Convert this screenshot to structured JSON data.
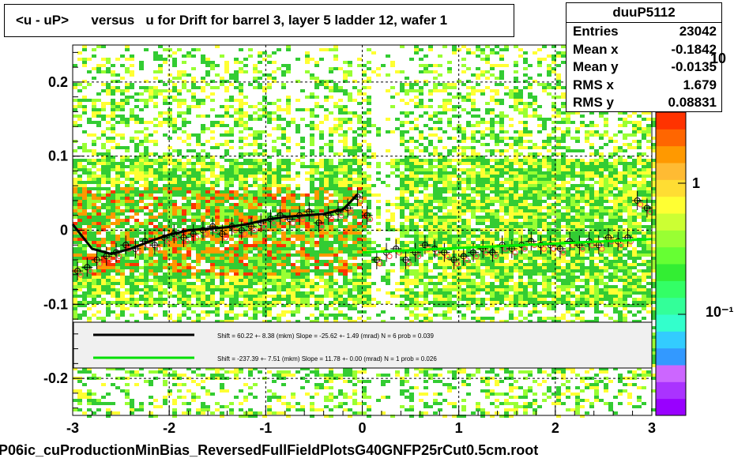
{
  "title": {
    "left": "<u - uP>",
    "versus": "versus",
    "rest": "u for Drift for barrel 3, layer 5 ladder 12, wafer 1"
  },
  "stats": {
    "name": "duuP5112",
    "rows": [
      {
        "label": "Entries",
        "value": "23042"
      },
      {
        "label": "Mean x",
        "value": "-0.1842"
      },
      {
        "label": "Mean y",
        "value": "-0.0135"
      },
      {
        "label": "RMS x",
        "value": "1.679"
      },
      {
        "label": "RMS y",
        "value": "0.08831"
      }
    ]
  },
  "palette_labels": {
    "top": "10",
    "mid": "1",
    "low": "10⁻¹"
  },
  "footer": "P06ic_cuProductionMinBias_ReversedFullFieldPlotsG40GNFP25rCut0.5cm.root",
  "legend": {
    "line1": "Shift =    60.22 +- 8.38 (mkm) Slope =   -25.62 +- 1.49 (mrad)  N = 6 prob = 0.039",
    "line2": "Shift =  -237.39 +- 7.51 (mkm) Slope =    11.78 +- 0.00 (mrad)  N = 1 prob = 0.026",
    "color1": "#000000",
    "color2": "#00e000"
  },
  "chart_data": {
    "type": "heatmap",
    "xlim": [
      -3,
      3
    ],
    "ylim": [
      -0.25,
      0.25
    ],
    "x_ticks": [
      -3,
      -2,
      -1,
      0,
      1,
      2,
      3
    ],
    "x_tick_labels": [
      "-3",
      "-2",
      "-1",
      "0",
      "1",
      "2",
      "3"
    ],
    "y_ticks": [
      -0.2,
      -0.1,
      0,
      0.1,
      0.2
    ],
    "y_tick_labels": [
      "-0.2",
      "-0.1",
      "0",
      "0.1",
      "0.2"
    ],
    "grid": true,
    "colors": {
      "green": "#33cc33",
      "yellow": "#ffff33",
      "orange": "#ff9900",
      "red": "#ff3300",
      "lightgreen": "#99ff33",
      "fit_black": "#000000",
      "fit_green": "#00ee00"
    },
    "profile_left": {
      "x": [
        -2.95,
        -2.85,
        -2.75,
        -2.65,
        -2.55,
        -2.45,
        -2.35,
        -2.25,
        -2.15,
        -2.05,
        -1.95,
        -1.85,
        -1.75,
        -1.65,
        -1.55,
        -1.45,
        -1.35,
        -1.25,
        -1.15,
        -1.05,
        -0.95,
        -0.85,
        -0.75,
        -0.65,
        -0.55,
        -0.45,
        -0.35,
        -0.25,
        -0.15,
        -0.05
      ],
      "y": [
        -0.055,
        -0.05,
        -0.04,
        -0.035,
        -0.03,
        -0.02,
        -0.025,
        -0.015,
        -0.02,
        -0.01,
        -0.005,
        -0.01,
        -0.005,
        0.0,
        0.005,
        -0.005,
        0.005,
        0.0,
        0.005,
        0.01,
        0.015,
        0.02,
        0.015,
        0.02,
        0.025,
        0.01,
        0.02,
        0.025,
        0.03,
        0.045
      ]
    },
    "profile_right": {
      "x": [
        0.05,
        0.15,
        0.25,
        0.35,
        0.45,
        0.55,
        0.65,
        0.75,
        0.85,
        0.95,
        1.05,
        1.15,
        1.25,
        1.35,
        1.45,
        1.55,
        1.65,
        1.75,
        1.85,
        1.95,
        2.05,
        2.15,
        2.25,
        2.35,
        2.45,
        2.55,
        2.65,
        2.75,
        2.85,
        2.95
      ],
      "y": [
        0.02,
        -0.04,
        -0.03,
        -0.025,
        -0.04,
        -0.03,
        -0.02,
        -0.025,
        -0.03,
        -0.04,
        -0.035,
        -0.03,
        -0.025,
        -0.03,
        -0.02,
        -0.025,
        -0.02,
        -0.015,
        -0.02,
        -0.02,
        -0.025,
        -0.015,
        -0.02,
        -0.015,
        -0.02,
        -0.01,
        -0.015,
        -0.01,
        0.04,
        0.03
      ]
    },
    "fit_left": {
      "x": [
        -3.0,
        -2.8,
        -2.6,
        -2.4,
        -2.2,
        -2.0,
        -1.8,
        -1.6,
        -1.4,
        -1.2,
        -1.0,
        -0.8,
        -0.6,
        -0.4,
        -0.2,
        -0.05
      ],
      "y": [
        0.008,
        -0.025,
        -0.032,
        -0.025,
        -0.015,
        -0.006,
        0.0,
        0.002,
        0.004,
        0.008,
        0.014,
        0.018,
        0.02,
        0.022,
        0.028,
        0.048
      ]
    },
    "fit_right": {
      "x": [
        0.0,
        3.0
      ],
      "y": [
        -0.03,
        -0.012
      ]
    }
  }
}
